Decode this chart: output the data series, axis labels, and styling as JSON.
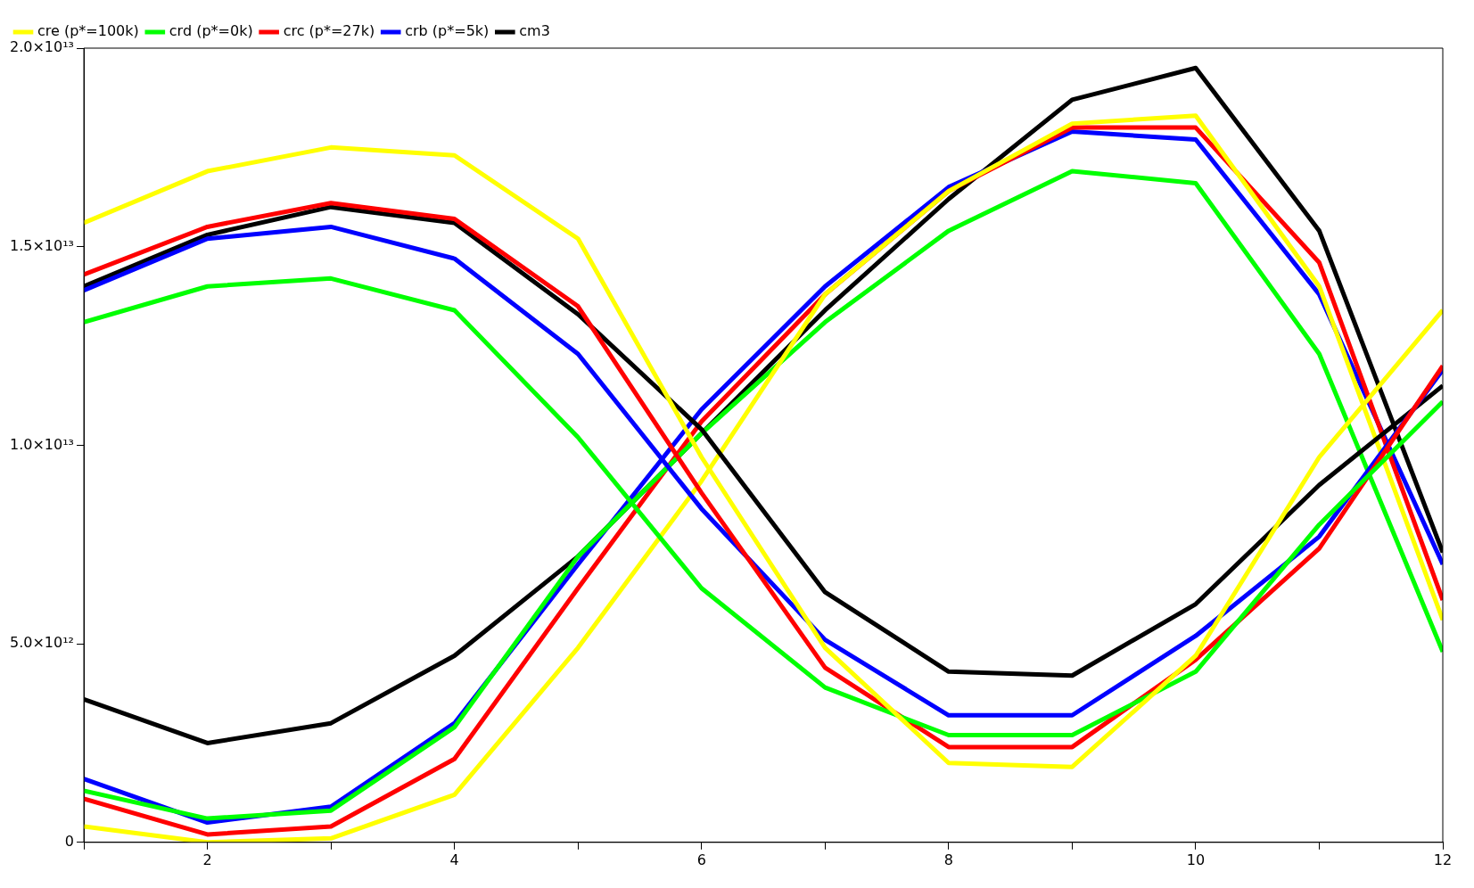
{
  "chart_data": {
    "type": "line",
    "x": [
      1,
      2,
      3,
      4,
      5,
      6,
      7,
      8,
      9,
      10,
      11,
      12
    ],
    "xlim": [
      1,
      12
    ],
    "xticks": [
      {
        "value": 1,
        "label": null
      },
      2,
      {
        "value": 3,
        "label": null
      },
      4,
      {
        "value": 5,
        "label": null
      },
      6,
      {
        "value": 7,
        "label": null
      },
      8,
      {
        "value": 9,
        "label": null
      },
      10,
      {
        "value": 11,
        "label": null
      },
      12
    ],
    "ylim": [
      0,
      20000000000000
    ],
    "yticks": [
      0,
      {
        "value": 5000000000000,
        "label": "5.0×10¹²"
      },
      {
        "value": 10000000000000,
        "label": "1.0×10¹³"
      },
      {
        "value": 15000000000000,
        "label": "1.5×10¹³"
      },
      {
        "value": 20000000000000,
        "label": "2.0×10¹³"
      }
    ],
    "grid": false,
    "legend": "top left",
    "marker": "none",
    "line_style": "solid",
    "series": [
      {
        "name": "cre (p*=100k)",
        "color": "#ffff00",
        "values": [
          15600000000000.0,
          16900000000000.0,
          17500000000000.0,
          17300000000000.0,
          15200000000000.0,
          9700000000000.0,
          4900000000000.0,
          2000000000000.0,
          1900000000000.0,
          4700000000000.0,
          9700000000000.0,
          13400000000000.0
        ]
      },
      {
        "name": "crd (p*=0k)",
        "color": "#00ff00",
        "values": [
          13100000000000.0,
          14000000000000.0,
          14200000000000.0,
          13400000000000.0,
          10200000000000.0,
          6400000000000.0,
          3900000000000.0,
          2700000000000.0,
          2700000000000.0,
          4300000000000.0,
          8000000000000.0,
          11100000000000.0
        ]
      },
      {
        "name": "crc (p*=27k)",
        "color": "#ff0000",
        "values": [
          14300000000000.0,
          15500000000000.0,
          16100000000000.0,
          15700000000000.0,
          13500000000000.0,
          8800000000000.0,
          4400000000000.0,
          2400000000000.0,
          2400000000000.0,
          4600000000000.0,
          7400000000000.0,
          12000000000000.0
        ]
      },
      {
        "name": "crb (p*=5k)",
        "color": "#0000ff",
        "values": [
          13900000000000.0,
          15200000000000.0,
          15500000000000.0,
          14700000000000.0,
          12300000000000.0,
          8400000000000.0,
          5100000000000.0,
          3200000000000.0,
          3200000000000.0,
          5200000000000.0,
          7700000000000.0,
          11900000000000.0
        ]
      },
      {
        "name": "cm3",
        "color": "#000000",
        "values": [
          14000000000000.0,
          15300000000000.0,
          16000000000000.0,
          15600000000000.0,
          13300000000000.0,
          10400000000000.0,
          6300000000000.0,
          4300000000000.0,
          4200000000000.0,
          6000000000000.0,
          9000000000000.0,
          11500000000000.0
        ]
      },
      {
        "color": "#ffff00",
        "values": [
          400000000000.0,
          0,
          100000000000.0,
          1200000000000.0,
          4900000000000.0,
          9100000000000.0,
          13800000000000.0,
          16400000000000.0,
          18100000000000.0,
          18300000000000.0,
          14000000000000.0,
          5600000000000.0
        ]
      },
      {
        "color": "#00ff00",
        "values": [
          1300000000000.0,
          600000000000.0,
          800000000000.0,
          2900000000000.0,
          7200000000000.0,
          10300000000000.0,
          13100000000000.0,
          15400000000000.0,
          16900000000000.0,
          16600000000000.0,
          12300000000000.0,
          4800000000000.0
        ]
      },
      {
        "color": "#ff0000",
        "values": [
          1100000000000.0,
          200000000000.0,
          400000000000.0,
          2100000000000.0,
          6400000000000.0,
          10600000000000.0,
          13800000000000.0,
          16400000000000.0,
          18000000000000.0,
          18000000000000.0,
          14600000000000.0,
          6100000000000.0
        ]
      },
      {
        "color": "#0000ff",
        "values": [
          1600000000000.0,
          500000000000.0,
          900000000000.0,
          3000000000000.0,
          7000000000000.0,
          10900000000000.0,
          14000000000000.0,
          16500000000000.0,
          17900000000000.0,
          17700000000000.0,
          13800000000000.0,
          7000000000000.0
        ]
      },
      {
        "color": "#000000",
        "values": [
          3600000000000.0,
          2500000000000.0,
          3000000000000.0,
          4700000000000.0,
          7200000000000.0,
          10300000000000.0,
          13400000000000.0,
          16200000000000.0,
          18700000000000.0,
          19500000000000.0,
          15400000000000.0,
          7300000000000.0
        ]
      }
    ]
  }
}
